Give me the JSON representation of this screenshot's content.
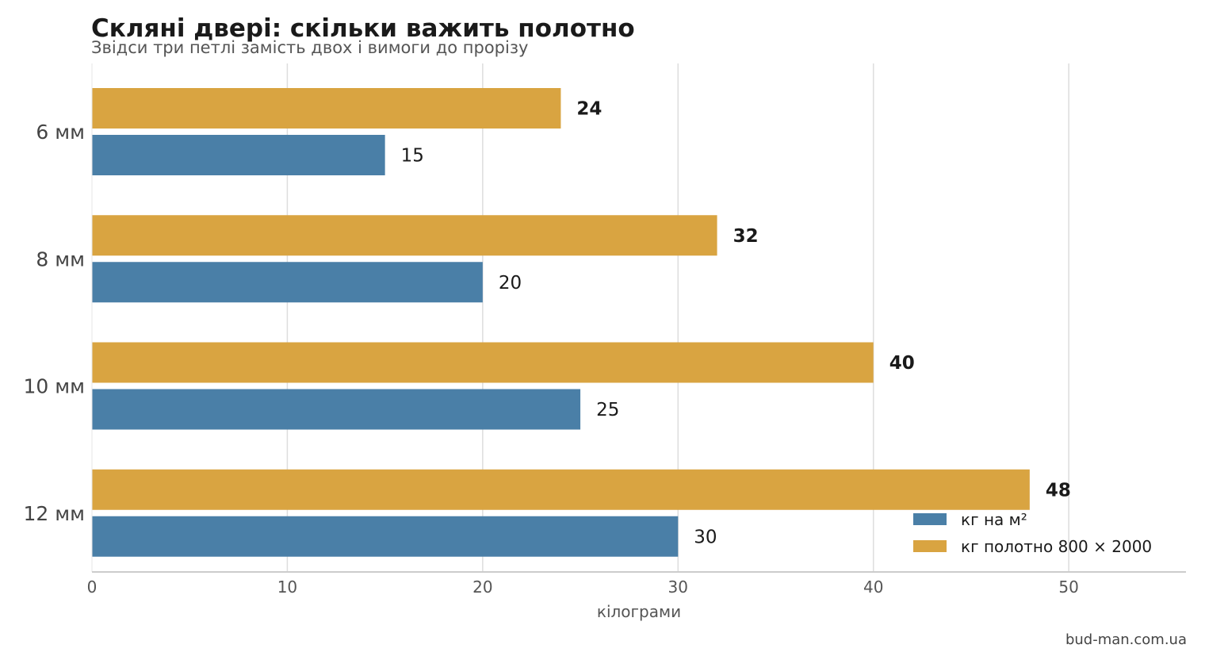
{
  "chart_data": {
    "type": "bar",
    "orientation": "horizontal",
    "title": "Скляні двері: скільки важить полотно",
    "subtitle": "Звідси три петлі замість двох і вимоги до прорізу",
    "xlabel": "кілограми",
    "ylabel": "",
    "categories": [
      "6 мм",
      "8 мм",
      "10 мм",
      "12 мм"
    ],
    "series": [
      {
        "name": "кг на м²",
        "values": [
          15,
          20,
          25,
          30
        ],
        "color": "#4a7fa7"
      },
      {
        "name": "кг полотно 800 × 2000",
        "values": [
          24,
          32,
          40,
          48
        ],
        "color": "#d9a441"
      }
    ],
    "xlim": [
      0,
      56
    ],
    "xticks": [
      0,
      10,
      20,
      30,
      40,
      50
    ],
    "grid": "vertical",
    "legend_position": "bottom-right",
    "source": "bud-man.com.ua"
  }
}
